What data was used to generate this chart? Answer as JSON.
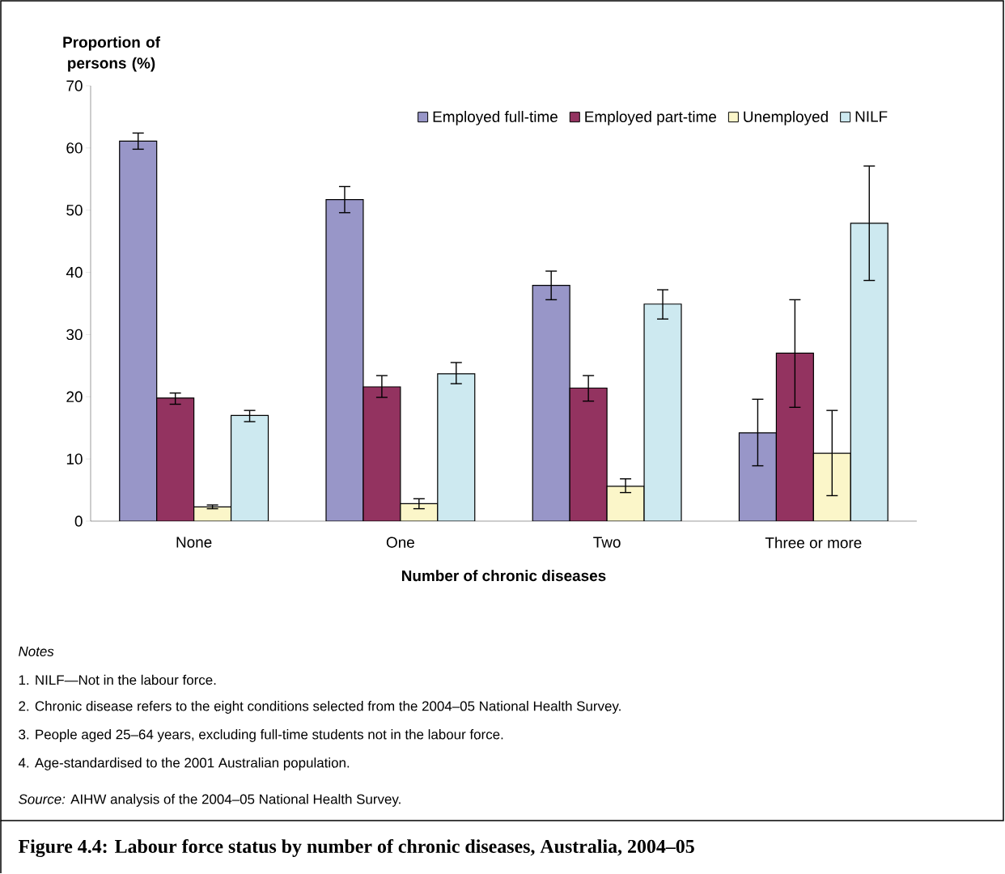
{
  "chart_data": {
    "type": "bar",
    "title": "Figure 4.4: Labour force status by number of chronic diseases, Australia, 2004–05",
    "xlabel": "Number of chronic diseases",
    "ylabel": "Proportion of persons (%)",
    "categories": [
      "None",
      "One",
      "Two",
      "Three or more"
    ],
    "series": [
      {
        "name": "Employed full-time",
        "color": "#9896c8",
        "values": [
          61.1,
          51.7,
          37.9,
          14.2
        ],
        "errors": [
          [
            59.8,
            62.4
          ],
          [
            49.6,
            53.8
          ],
          [
            35.6,
            40.2
          ],
          [
            8.9,
            19.6
          ]
        ]
      },
      {
        "name": "Employed part-time",
        "color": "#933360",
        "values": [
          19.8,
          21.6,
          21.4,
          27.0
        ],
        "errors": [
          [
            18.8,
            20.6
          ],
          [
            19.9,
            23.4
          ],
          [
            19.3,
            23.4
          ],
          [
            18.3,
            35.6
          ]
        ]
      },
      {
        "name": "Unemployed",
        "color": "#fbf6c9",
        "values": [
          2.3,
          2.8,
          5.6,
          10.9
        ],
        "errors": [
          [
            2.0,
            2.6
          ],
          [
            2.0,
            3.6
          ],
          [
            4.6,
            6.8
          ],
          [
            4.1,
            17.8
          ]
        ]
      },
      {
        "name": "NILF",
        "color": "#cde9f0",
        "values": [
          17.0,
          23.7,
          34.9,
          47.9
        ],
        "errors": [
          [
            16.0,
            17.8
          ],
          [
            22.1,
            25.5
          ],
          [
            32.5,
            37.2
          ],
          [
            38.7,
            57.1
          ]
        ]
      }
    ],
    "ylim": [
      0,
      70
    ],
    "yticks": [
      0,
      10,
      20,
      30,
      40,
      50,
      60,
      70
    ],
    "grid": false,
    "legend": "top right",
    "annotations": [
      "*Notes*",
      "1. NILF—Not in the labour force.",
      "2. Chronic disease refers to the eight conditions selected from the 2004–05 National Health Survey.",
      "3. People aged 25–64 years, excluding full-time students not in the labour force.",
      "4. Age-standardised to the 2001 Australian population.",
      "*Source:* AIHW analysis of the 2004–05 National Health Survey."
    ]
  }
}
